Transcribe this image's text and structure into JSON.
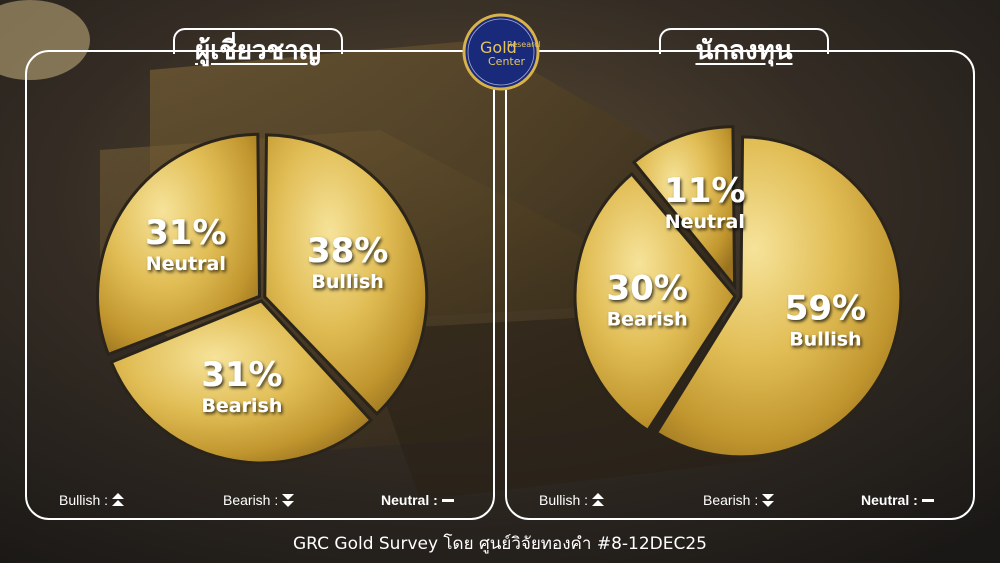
{
  "logo": {
    "line1": "Gold",
    "line2": "Research",
    "line3": "Center"
  },
  "footer": {
    "text": "GRC Gold Survey โดย ศูนย์วิจัยทองคำ #8-12DEC25"
  },
  "legend": {
    "bullish": "Bullish :",
    "bearish": "Bearish :",
    "neutral": "Neutral :"
  },
  "colors": {
    "gold_light": "#f3dc8a",
    "gold_mid": "#d9b24a",
    "gold_dark": "#a87f22",
    "frame": "#ffffff",
    "logo_bg": "#1a2a7a"
  },
  "chart_data": [
    {
      "type": "pie",
      "title": "ผู้เชี่ยวชาญ",
      "slices": [
        {
          "label": "Bullish",
          "value": 38
        },
        {
          "label": "Bearish",
          "value": 31
        },
        {
          "label": "Neutral",
          "value": 31
        }
      ]
    },
    {
      "type": "pie",
      "title": "นักลงทุน",
      "slices": [
        {
          "label": "Bullish",
          "value": 59
        },
        {
          "label": "Bearish",
          "value": 30
        },
        {
          "label": "Neutral",
          "value": 11
        }
      ]
    }
  ]
}
